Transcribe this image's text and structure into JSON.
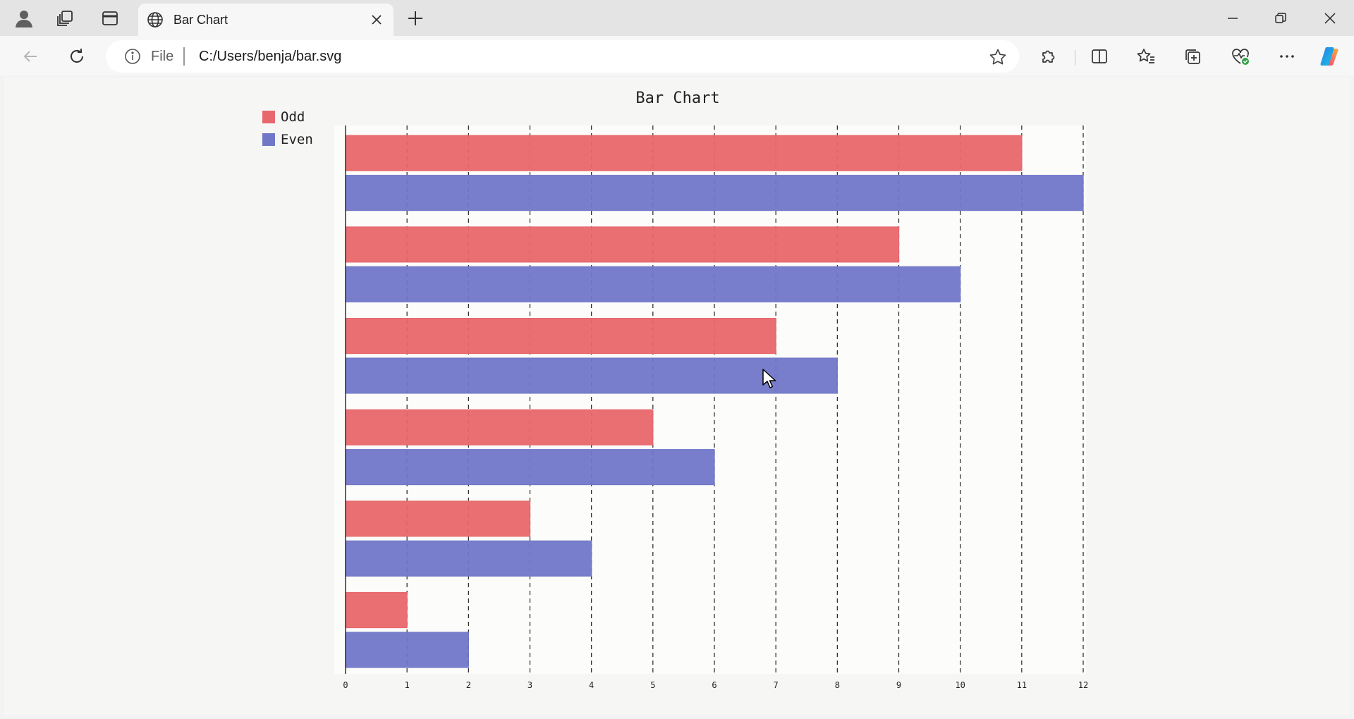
{
  "browser": {
    "tab_title": "Bar Chart",
    "address_scheme": "File",
    "address_url": "C:/Users/benja/bar.svg"
  },
  "icons": {
    "profile": "profile-icon",
    "workspaces": "workspaces-icon",
    "tab_actions": "vertical-tabs-icon",
    "tab_favicon": "globe-icon",
    "close_tab": "close-icon",
    "new_tab": "plus-icon",
    "minimize": "minimize-icon",
    "restore": "restore-icon",
    "close_window": "close-icon",
    "back": "back-arrow-icon",
    "refresh": "refresh-icon",
    "site_info": "info-icon",
    "favorite": "star-icon",
    "extensions": "puzzle-icon",
    "split_screen": "split-screen-icon",
    "favorites": "favorites-icon",
    "collections": "collections-icon",
    "browser_essentials": "heart-pulse-icon",
    "more": "more-dots-icon",
    "copilot": "copilot-icon"
  },
  "chart_data": {
    "type": "bar",
    "orientation": "horizontal",
    "title": "Bar Chart",
    "categories": [
      "",
      "",
      "",
      "",
      "",
      ""
    ],
    "series": [
      {
        "name": "Odd",
        "color": "#e8676c",
        "values": [
          11,
          9,
          7,
          5,
          3,
          1
        ]
      },
      {
        "name": "Even",
        "color": "#7177c8",
        "values": [
          12,
          10,
          8,
          6,
          4,
          2
        ]
      }
    ],
    "xlim": [
      0,
      12
    ],
    "xticks": [
      "0",
      "1",
      "2",
      "3",
      "4",
      "5",
      "6",
      "7",
      "8",
      "9",
      "10",
      "11",
      "12"
    ],
    "grid": true,
    "grid_style": "dashed",
    "legend_position": "top-left"
  }
}
